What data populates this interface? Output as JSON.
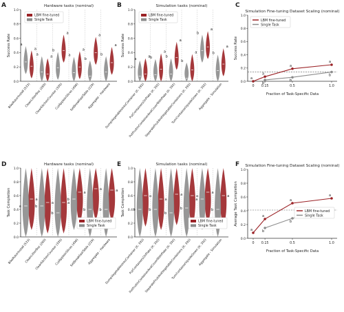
{
  "colors": {
    "lbm": "#9b2226",
    "single": "#8c8c8c"
  },
  "chart_data": [
    {
      "panel": "A",
      "type": "violin",
      "title": "Hardware tasks (nominal)",
      "ylabel": "Success Rate",
      "ylim": [
        0,
        1
      ],
      "yticks": [
        "0.0",
        "0.2",
        "0.4",
        "0.6",
        "0.8",
        "1.0"
      ],
      "legend": [
        "LBM fine-tuned",
        "Single Task"
      ],
      "categories": [
        "BikeRotorInstall (533)",
        "CleanLitterBox (260)",
        "ClearKitchenCounter (305)",
        "CutAppleinSlices (496)",
        "SetBreakfastTable (229)",
        "Aggregate - Hardware"
      ],
      "series": [
        {
          "name": "LBM fine-tuned",
          "values": [
            0.21,
            0.1,
            0.43,
            0.2,
            0.4,
            0.26
          ],
          "letters": [
            "a",
            "a",
            "a",
            "a",
            "a",
            "a"
          ]
        },
        {
          "name": "Single Task",
          "values": [
            0.27,
            0.13,
            0.19,
            0.12,
            0.07,
            0.13
          ],
          "letters": [
            "a",
            "a",
            "b",
            "a",
            "b",
            "b"
          ]
        }
      ]
    },
    {
      "panel": "B",
      "type": "violin",
      "title": "Simulation tasks (nominal)",
      "ylabel": "Success Rate",
      "ylim": [
        0,
        1
      ],
      "yticks": [
        "0.0",
        "0.2",
        "0.4",
        "0.6",
        "0.8",
        "1.0"
      ],
      "legend": [
        "LBM fine-tuned",
        "Single Task"
      ],
      "categories": [
        "DumpVegetablesIntoContainer (K: 392)",
        "PutContainersOnPlate (K: 392)",
        "PutFruitInContainerAndCoverWithPlate (K: 392)",
        "SeparateFruitAndVegetableContainers (K: 392)",
        "TurnContainerUpsideDown (K: 392)",
        "Aggregate - Simulation"
      ],
      "series": [
        {
          "name": "LBM fine-tuned",
          "values": [
            0.1,
            0.17,
            0.33,
            0.16,
            0.48,
            0.24
          ],
          "letters": [
            "a",
            "a",
            "a",
            "a",
            "a",
            "a"
          ]
        },
        {
          "name": "Single Task",
          "values": [
            0.07,
            0.09,
            0.1,
            0.04,
            0.43,
            0.15
          ],
          "letters": [
            "a",
            "b",
            "b",
            "b",
            "b",
            "b"
          ]
        }
      ]
    },
    {
      "panel": "C",
      "type": "line",
      "title": "Simulation Fine-tuning Dataset Scaling (nominal)",
      "xlabel": "Fraction of Task-Specific Data",
      "ylabel": "Success Rate",
      "ylim": [
        0,
        1
      ],
      "xticks": [
        "0",
        "0.15",
        "0.5",
        "1.0"
      ],
      "yticks": [
        "0.0",
        "0.2",
        "0.4",
        "0.6",
        "0.8",
        "1.0"
      ],
      "legend": [
        "LBM fine-tuned",
        "Single Task"
      ],
      "x": [
        0,
        0.15,
        0.5,
        1.0
      ],
      "hline": 0.14,
      "series": [
        {
          "name": "LBM fine-tuned",
          "values": [
            0.0,
            0.07,
            0.19,
            0.25
          ],
          "letters": [
            "a",
            "a",
            "a",
            "a"
          ]
        },
        {
          "name": "Single Task",
          "values": [
            null,
            0.02,
            0.06,
            0.14
          ],
          "letters": [
            "",
            "b",
            "b",
            "b"
          ]
        }
      ]
    },
    {
      "panel": "D",
      "type": "violin",
      "title": "Hardware tasks (nominal)",
      "ylabel": "Task Completion",
      "ylim": [
        0,
        1
      ],
      "yticks": [
        "0.0",
        "0.2",
        "0.4",
        "0.6",
        "0.8",
        "1.0"
      ],
      "legend": [
        "LBM fine-tuned",
        "Single Task"
      ],
      "categories": [
        "BikeRotorInstall (533)",
        "CleanLitterBox (260)",
        "ClearKitchenCounter (305)",
        "CutAppleinSlices (496)",
        "SetBreakfastTable (229)",
        "Aggregate - Hardware"
      ],
      "series": [
        {
          "name": "LBM fine-tuned",
          "values": [
            0.55,
            0.5,
            0.5,
            0.65,
            0.7,
            0.68
          ],
          "letters": [
            "a",
            "a",
            "a",
            "a",
            "a",
            "a"
          ]
        },
        {
          "name": "Single Task",
          "values": [
            0.45,
            0.45,
            0.35,
            0.55,
            0.4,
            0.4
          ],
          "letters": [
            "a",
            "b",
            "b",
            "b",
            "b",
            "b"
          ]
        }
      ]
    },
    {
      "panel": "E",
      "type": "violin",
      "title": "Simulation tasks (nominal)",
      "ylabel": "Task Completion",
      "ylim": [
        0,
        1
      ],
      "yticks": [
        "0.0",
        "0.2",
        "0.4",
        "0.6",
        "0.8",
        "1.0"
      ],
      "legend": [
        "LBM fine-tuned",
        "Single Task"
      ],
      "categories": [
        "DumpVegetablesIntoContainer (K: 392)",
        "PutContainersOnPlate (K: 392)",
        "PutFruitInContainerAndCoverWithPlate (K: 392)",
        "SeparateFruitAndVegetableContainers (K: 392)",
        "TurnContainerUpsideDown (K: 392)",
        "Aggregate - Simulation"
      ],
      "series": [
        {
          "name": "LBM fine-tuned",
          "values": [
            0.6,
            0.55,
            0.62,
            0.6,
            0.65,
            0.6
          ],
          "letters": [
            "a",
            "a",
            "a",
            "a",
            "a",
            "a"
          ]
        },
        {
          "name": "Single Task",
          "values": [
            0.4,
            0.4,
            0.35,
            0.42,
            0.55,
            0.4
          ],
          "letters": [
            "b",
            "b",
            "b",
            "b",
            "a",
            "b"
          ]
        }
      ]
    },
    {
      "panel": "F",
      "type": "line",
      "title": "Simulation Fine-tuning Dataset Scaling (nominal)",
      "xlabel": "Fraction of Task-Specific Data",
      "ylabel": "Average Task Completion",
      "ylim": [
        0,
        1
      ],
      "xticks": [
        "0",
        "0.15",
        "0.5",
        "1.0"
      ],
      "yticks": [
        "0.0",
        "0.2",
        "0.4",
        "0.6",
        "0.8",
        "1.0"
      ],
      "legend": [
        "LBM fine-tuned",
        "Single Task"
      ],
      "x": [
        0,
        0.15,
        0.5,
        1.0
      ],
      "hline": 0.41,
      "series": [
        {
          "name": "LBM fine-tuned",
          "values": [
            0.08,
            0.28,
            0.51,
            0.58
          ],
          "letters": [
            "a",
            "a",
            "a",
            "a"
          ]
        },
        {
          "name": "Single Task",
          "values": [
            null,
            0.15,
            0.29,
            0.41
          ],
          "letters": [
            "",
            "b",
            "b",
            "b"
          ]
        }
      ]
    }
  ]
}
